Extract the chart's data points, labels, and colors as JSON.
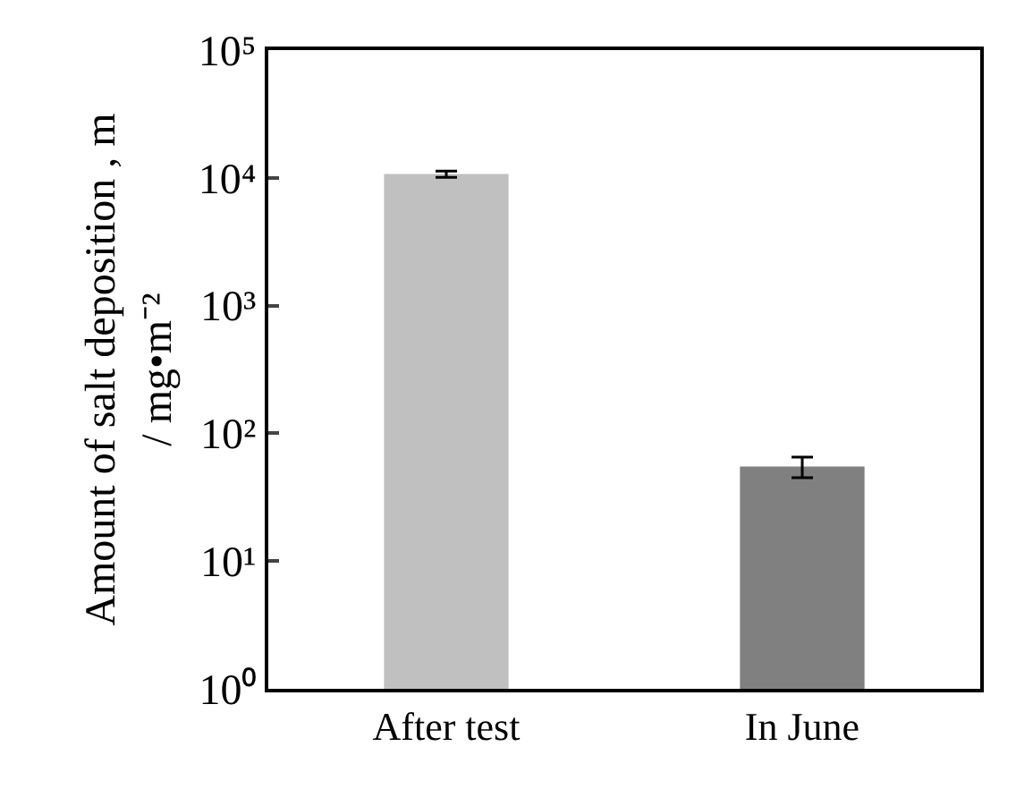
{
  "chart_data": {
    "type": "bar",
    "categories": [
      "After test",
      "In June"
    ],
    "values": [
      10700,
      55
    ],
    "colors": [
      "#c0c0c0",
      "#808080"
    ],
    "errors": [
      600,
      10
    ],
    "ylabel": "Amount of salt deposition , m\n/ mg•m⁻²",
    "log": true,
    "ylim": [
      1,
      100000
    ],
    "yticks": [
      {
        "value": 1,
        "label": "10⁰"
      },
      {
        "value": 10,
        "label": "10¹"
      },
      {
        "value": 100,
        "label": "10²"
      },
      {
        "value": 1000,
        "label": "10³"
      },
      {
        "value": 10000,
        "label": "10⁴"
      },
      {
        "value": 100000,
        "label": "10⁵"
      }
    ],
    "grid": false,
    "legend": false
  }
}
